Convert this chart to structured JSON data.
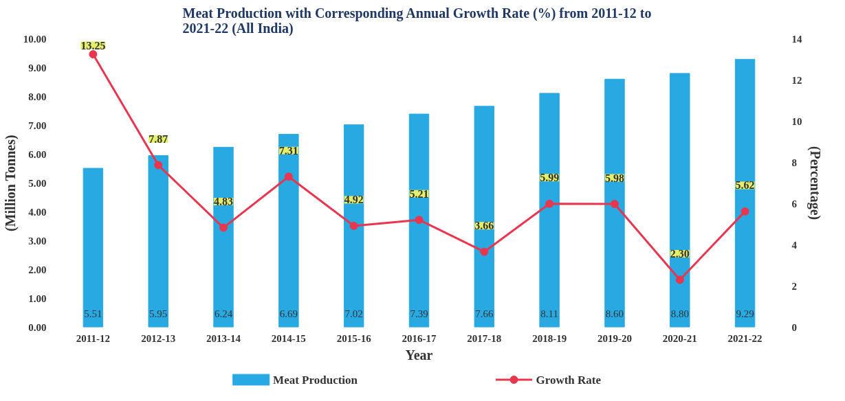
{
  "chart_data": {
    "type": "bar",
    "title": "Meat Production  with Corresponding Annual Growth Rate (%) from 2011-12 to 2021-22 (All India)",
    "xlabel": "Year",
    "ylabel": "(Million Tonnes)",
    "y2label": "(Percentage)",
    "categories": [
      "2011-12",
      "2012-13",
      "2013-14",
      "2014-15",
      "2015-16",
      "2016-17",
      "2017-18",
      "2018-19",
      "2019-20",
      "2020-21",
      "2021-22"
    ],
    "series": [
      {
        "name": "Meat Production",
        "color": "#29a9e1",
        "values": [
          5.51,
          5.95,
          6.24,
          6.69,
          7.02,
          7.39,
          7.66,
          8.11,
          8.6,
          8.8,
          9.29
        ],
        "value_labels": [
          "5.51",
          "5.95",
          "6.24",
          "6.69",
          "7.02",
          "7.39",
          "7.66",
          "8.11",
          "8.60",
          "8.80",
          "9.29"
        ]
      },
      {
        "name": "Growth Rate",
        "type": "line",
        "axis": "y2",
        "color": "#e8364f",
        "marker": "circle",
        "values": [
          13.25,
          7.87,
          4.83,
          7.31,
          4.92,
          5.21,
          3.66,
          5.99,
          5.98,
          2.3,
          5.62
        ],
        "value_labels": [
          "13.25",
          "7.87",
          "4.83",
          "7.31",
          "4.92",
          "5.21",
          "3.66",
          "5.99",
          "5.98",
          "2.30",
          "5.62"
        ]
      }
    ],
    "ylim": [
      0,
      10
    ],
    "yticks": [
      {
        "value": 0,
        "label": "0.00"
      },
      {
        "value": 1,
        "label": "1.00"
      },
      {
        "value": 2,
        "label": "2.00"
      },
      {
        "value": 3,
        "label": "3.00"
      },
      {
        "value": 4,
        "label": "4.00"
      },
      {
        "value": 5,
        "label": "5.00"
      },
      {
        "value": 6,
        "label": "6.00"
      },
      {
        "value": 7,
        "label": "7.00"
      },
      {
        "value": 8,
        "label": "8.00"
      },
      {
        "value": 9,
        "label": "9.00"
      },
      {
        "value": 10,
        "label": "10.00"
      }
    ],
    "y2lim": [
      0,
      14
    ],
    "y2ticks": [
      0,
      2,
      4,
      6,
      8,
      10,
      12,
      14
    ],
    "grid": false,
    "legend": "bottom"
  }
}
